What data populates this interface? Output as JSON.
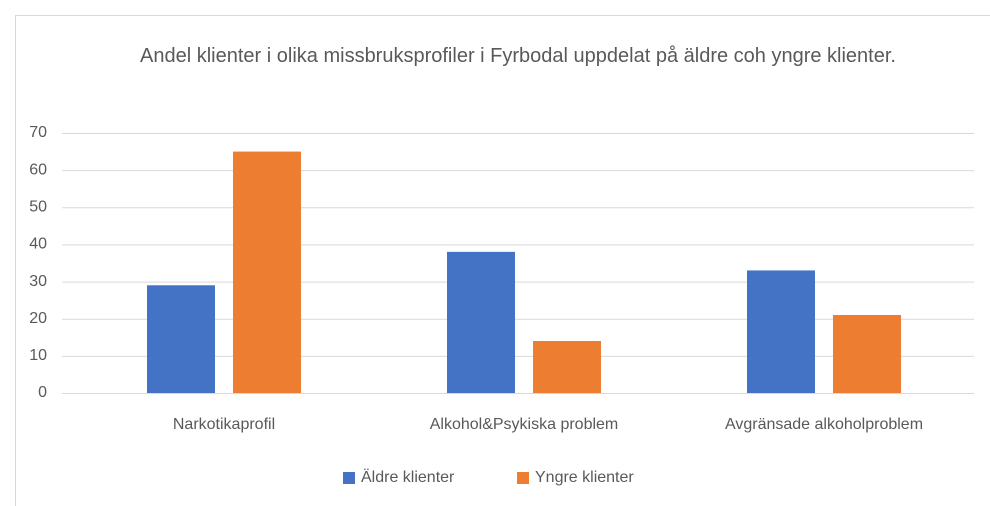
{
  "chart_data": {
    "type": "bar",
    "title": "Andel klienter i olika missbruksprofiler i Fyrbodal uppdelat på äldre coh yngre klienter.",
    "categories": [
      "Narkotikaprofil",
      "Alkohol&Psykiska problem",
      "Avgränsade alkoholproblem"
    ],
    "series": [
      {
        "name": "Äldre klienter",
        "color": "#4472c4",
        "values": [
          29,
          38,
          33
        ]
      },
      {
        "name": "Yngre klienter",
        "color": "#ed7d31",
        "values": [
          65,
          14,
          21
        ]
      }
    ],
    "ylim": [
      0,
      70
    ],
    "yticks": [
      0,
      10,
      20,
      30,
      40,
      50,
      60,
      70
    ],
    "grid": true,
    "legend": "bottom"
  }
}
